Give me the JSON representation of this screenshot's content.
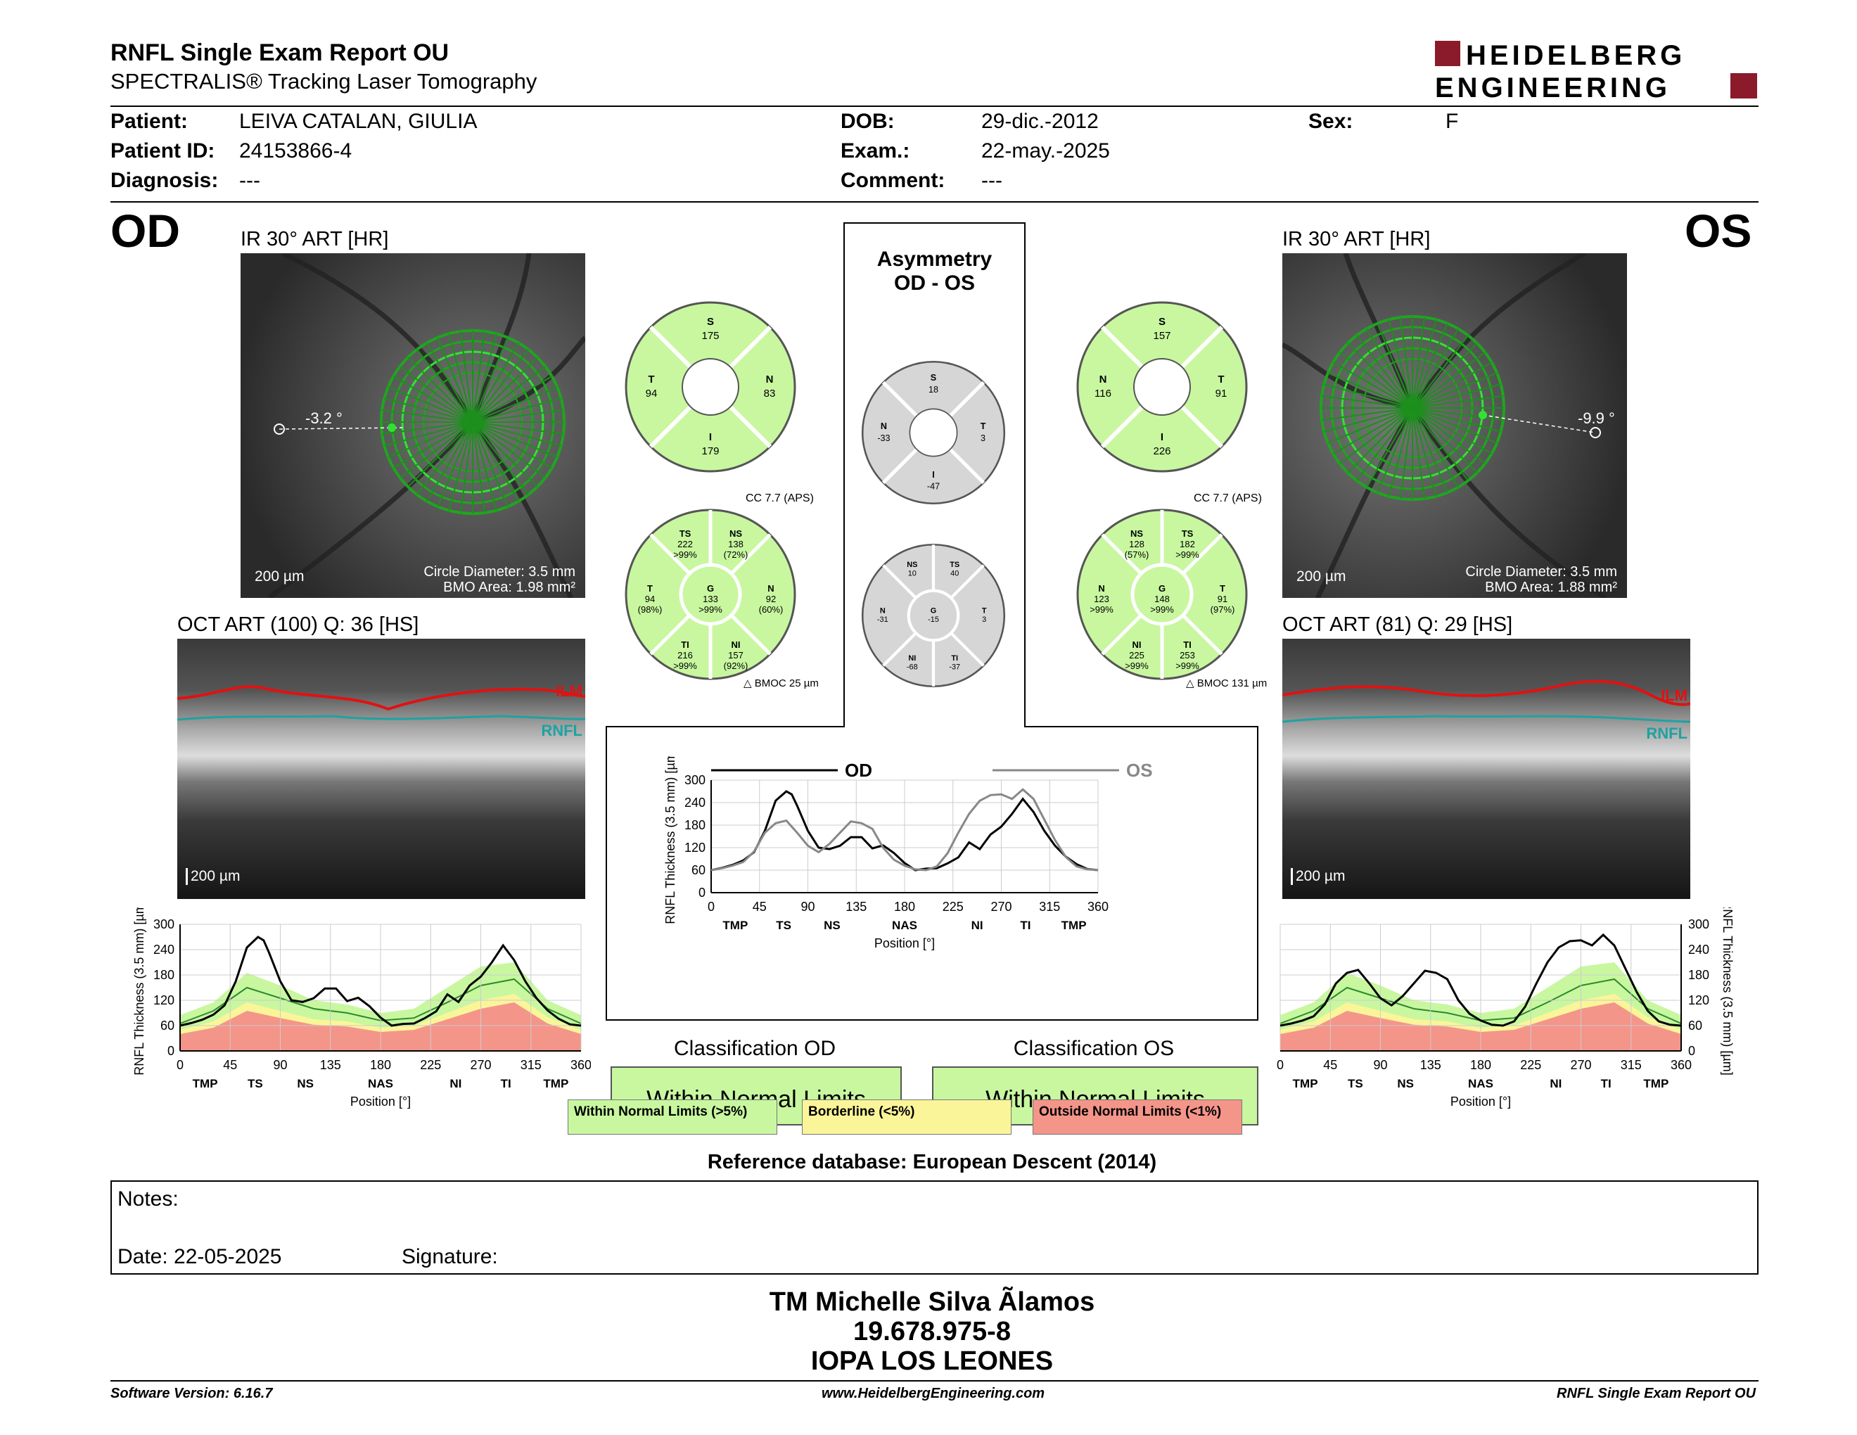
{
  "header": {
    "title": "RNFL Single Exam Report OU",
    "subtitle": "SPECTRALIS® Tracking Laser Tomography",
    "logo_line1": "HEIDELBERG",
    "logo_line2": "ENGINEERING"
  },
  "patient": {
    "patient_label": "Patient:",
    "patient_value": "LEIVA CATALAN, GIULIA",
    "id_label": "Patient ID:",
    "id_value": "24153866-4",
    "diag_label": "Diagnosis:",
    "diag_value": "---",
    "dob_label": "DOB:",
    "dob_value": "29-dic.-2012",
    "exam_label": "Exam.:",
    "exam_value": "22-may.-2025",
    "comment_label": "Comment:",
    "comment_value": "---",
    "sex_label": "Sex:",
    "sex_value": "F"
  },
  "od": {
    "eye": "OD",
    "ir_title": "IR 30° ART [HR]",
    "angle": "-3.2 °",
    "scale": "200 µm",
    "circle_diameter": "Circle Diameter: 3.5 mm",
    "bmo_area": "BMO Area: 1.98 mm²",
    "oct_title": "OCT ART (100) Q: 36 [HS]",
    "oct_scale": "200 µm",
    "ilm": "ILM",
    "rnfl": "RNFL"
  },
  "os": {
    "eye": "OS",
    "ir_title": "IR 30° ART [HR]",
    "angle": "-9.9 °",
    "scale": "200 µm",
    "circle_diameter": "Circle Diameter: 3.5 mm",
    "bmo_area": "BMO Area: 1.88 mm²",
    "oct_title": "OCT ART (81) Q: 29 [HS]",
    "oct_scale": "200 µm",
    "ilm": "ILM",
    "rnfl": "RNFL"
  },
  "quadrants_od": {
    "S": "175",
    "T": "94",
    "N": "83",
    "I": "179"
  },
  "quadrants_os": {
    "S": "157",
    "N": "116",
    "T": "91",
    "I": "226"
  },
  "quadrants_asym": {
    "S": "18",
    "N": "-33",
    "T": "3",
    "I": "-47"
  },
  "sectors_od": {
    "cc": "CC 7.7 (APS)",
    "bmoc": "BMOC 25 µm",
    "TS": [
      "TS",
      "222",
      ">99%"
    ],
    "NS": [
      "NS",
      "138",
      "(72%)"
    ],
    "T": [
      "T",
      "94",
      "(98%)"
    ],
    "G": [
      "G",
      "133",
      ">99%"
    ],
    "N": [
      "N",
      "92",
      "(60%)"
    ],
    "TI": [
      "TI",
      "216",
      ">99%"
    ],
    "NI": [
      "NI",
      "157",
      "(92%)"
    ]
  },
  "sectors_os": {
    "cc": "CC 7.7 (APS)",
    "bmoc": "BMOC 131 µm",
    "NS": [
      "NS",
      "128",
      "(57%)"
    ],
    "TS": [
      "TS",
      "182",
      ">99%"
    ],
    "N": [
      "N",
      "123",
      ">99%"
    ],
    "G": [
      "G",
      "148",
      ">99%"
    ],
    "T": [
      "T",
      "91",
      "(97%)"
    ],
    "NI": [
      "NI",
      "225",
      ">99%"
    ],
    "TI": [
      "TI",
      "253",
      ">99%"
    ]
  },
  "sectors_asym": {
    "NS": [
      "NS",
      "10"
    ],
    "TS": [
      "TS",
      "40"
    ],
    "N": [
      "N",
      "-31"
    ],
    "G": [
      "G",
      "-15"
    ],
    "T": [
      "T",
      "3"
    ],
    "NI": [
      "NI",
      "-68"
    ],
    "TI": [
      "TI",
      "-37"
    ]
  },
  "asymmetry": {
    "title1": "Asymmetry",
    "title2": "OD - OS"
  },
  "chart_data": [
    {
      "type": "line",
      "title": "",
      "xlabel": "Position [°]",
      "ylabel": "RNFL Thickness (3.5 mm) [µm]",
      "x_ticks": [
        "0",
        "45",
        "90",
        "135",
        "180",
        "225",
        "270",
        "315",
        "360"
      ],
      "sector_labels": [
        "TMP",
        "TS",
        "NS",
        "NAS",
        "NI",
        "TI",
        "TMP"
      ],
      "y_ticks": [
        "300",
        "240",
        "180",
        "120",
        "60",
        "0"
      ],
      "xlim": [
        0,
        360
      ],
      "ylim": [
        0,
        300
      ],
      "series": [
        {
          "name": "OD",
          "x": [
            0,
            10,
            20,
            30,
            40,
            50,
            60,
            70,
            75,
            80,
            90,
            100,
            110,
            120,
            130,
            140,
            150,
            160,
            170,
            180,
            190,
            200,
            210,
            220,
            230,
            240,
            250,
            260,
            270,
            280,
            290,
            300,
            310,
            320,
            330,
            340,
            350,
            360
          ],
          "values": [
            60,
            66,
            74,
            86,
            108,
            165,
            245,
            270,
            262,
            232,
            165,
            120,
            116,
            125,
            148,
            148,
            118,
            126,
            106,
            79,
            60,
            64,
            65,
            78,
            94,
            134,
            116,
            155,
            176,
            210,
            250,
            215,
            165,
            125,
            96,
            76,
            63,
            60
          ]
        }
      ],
      "bands": {
        "x": [
          0,
          30,
          60,
          90,
          120,
          150,
          180,
          210,
          240,
          270,
          300,
          330,
          360
        ],
        "green_top": [
          85,
          115,
          185,
          155,
          120,
          110,
          90,
          100,
          150,
          200,
          210,
          120,
          85
        ],
        "yellow_top": [
          50,
          70,
          115,
          95,
          75,
          70,
          55,
          60,
          90,
          120,
          135,
          80,
          50
        ],
        "red_top": [
          40,
          55,
          95,
          78,
          62,
          58,
          45,
          50,
          75,
          100,
          115,
          65,
          40
        ],
        "normal_mean": [
          65,
          95,
          150,
          125,
          100,
          90,
          72,
          78,
          115,
          155,
          170,
          100,
          65
        ]
      }
    },
    {
      "type": "line",
      "title": "",
      "xlabel": "Position [°]",
      "ylabel": "RNFL Thickness (3.5 mm) [µm]",
      "x_ticks": [
        "0",
        "45",
        "90",
        "135",
        "180",
        "225",
        "270",
        "315",
        "360"
      ],
      "sector_labels": [
        "TMP",
        "TS",
        "NS",
        "NAS",
        "NI",
        "TI",
        "TMP"
      ],
      "y_ticks": [
        "300",
        "240",
        "180",
        "120",
        "60",
        "0"
      ],
      "xlim": [
        0,
        360
      ],
      "ylim": [
        0,
        300
      ],
      "legend": [
        "OD",
        "OS"
      ],
      "series": [
        {
          "name": "OD",
          "x": [
            0,
            10,
            20,
            30,
            40,
            50,
            60,
            70,
            75,
            80,
            90,
            100,
            110,
            120,
            130,
            140,
            150,
            160,
            170,
            180,
            190,
            200,
            210,
            220,
            230,
            240,
            250,
            260,
            270,
            280,
            290,
            300,
            310,
            320,
            330,
            340,
            350,
            360
          ],
          "values": [
            60,
            66,
            74,
            86,
            108,
            165,
            245,
            270,
            262,
            232,
            165,
            120,
            116,
            125,
            148,
            148,
            118,
            126,
            106,
            79,
            60,
            64,
            65,
            78,
            94,
            134,
            116,
            155,
            176,
            210,
            250,
            215,
            165,
            125,
            96,
            76,
            63,
            60
          ]
        },
        {
          "name": "OS",
          "x": [
            0,
            10,
            20,
            30,
            40,
            50,
            60,
            70,
            80,
            90,
            100,
            110,
            120,
            130,
            140,
            150,
            160,
            170,
            180,
            190,
            200,
            210,
            220,
            230,
            240,
            250,
            260,
            270,
            280,
            290,
            300,
            310,
            320,
            330,
            340,
            350,
            360
          ],
          "values": [
            60,
            65,
            72,
            82,
            110,
            160,
            185,
            192,
            160,
            125,
            108,
            130,
            160,
            190,
            185,
            170,
            120,
            88,
            72,
            62,
            60,
            70,
            105,
            160,
            210,
            245,
            260,
            262,
            250,
            275,
            250,
            195,
            140,
            95,
            70,
            62,
            60
          ]
        }
      ]
    },
    {
      "type": "line",
      "title": "",
      "xlabel": "Position [°]",
      "ylabel": "RNFL Thickness (3.5 mm) [µm]",
      "x_ticks": [
        "0",
        "45",
        "90",
        "135",
        "180",
        "225",
        "270",
        "315",
        "360"
      ],
      "sector_labels": [
        "TMP",
        "TS",
        "NS",
        "NAS",
        "NI",
        "TI",
        "TMP"
      ],
      "y_ticks": [
        "300",
        "240",
        "180",
        "120",
        "60",
        "0"
      ],
      "xlim": [
        0,
        360
      ],
      "ylim": [
        0,
        300
      ],
      "series": [
        {
          "name": "OS",
          "x": [
            0,
            10,
            20,
            30,
            40,
            50,
            60,
            70,
            80,
            90,
            100,
            110,
            120,
            130,
            140,
            150,
            160,
            170,
            180,
            190,
            200,
            210,
            220,
            230,
            240,
            250,
            260,
            270,
            280,
            290,
            300,
            310,
            320,
            330,
            340,
            350,
            360
          ],
          "values": [
            60,
            65,
            72,
            82,
            110,
            160,
            185,
            192,
            160,
            125,
            108,
            130,
            160,
            190,
            185,
            170,
            120,
            88,
            72,
            62,
            60,
            70,
            105,
            160,
            210,
            245,
            260,
            262,
            250,
            275,
            250,
            195,
            140,
            95,
            70,
            62,
            60
          ]
        }
      ],
      "bands": {
        "x": [
          0,
          30,
          60,
          90,
          120,
          150,
          180,
          210,
          240,
          270,
          300,
          330,
          360
        ],
        "green_top": [
          85,
          115,
          185,
          155,
          120,
          110,
          90,
          100,
          150,
          200,
          210,
          120,
          85
        ],
        "yellow_top": [
          50,
          70,
          115,
          95,
          75,
          70,
          55,
          60,
          90,
          120,
          135,
          80,
          50
        ],
        "red_top": [
          40,
          55,
          95,
          78,
          62,
          58,
          45,
          50,
          75,
          100,
          115,
          65,
          40
        ],
        "normal_mean": [
          65,
          95,
          150,
          125,
          100,
          90,
          72,
          78,
          115,
          155,
          170,
          100,
          65
        ]
      }
    }
  ],
  "classification": {
    "od_title": "Classification OD",
    "od_value": "Within Normal Limits",
    "os_title": "Classification OS",
    "os_value": "Within Normal Limits",
    "legend_green": "Within Normal Limits (>5%)",
    "legend_yellow": "Borderline (<5%)",
    "legend_red": "Outside Normal Limits (<1%)",
    "reference": "Reference database: European Descent (2014)"
  },
  "notes": {
    "notes_label": "Notes:",
    "date_label": "Date: 22-05-2025",
    "signature_label": "Signature:"
  },
  "signature_block": {
    "name": "TM Michelle Silva Ãlamos",
    "rut": "19.678.975-8",
    "clinic": "IOPA LOS LEONES"
  },
  "footer": {
    "version": "Software Version: 6.16.7",
    "url": "www.HeidelbergEngineering.com",
    "report": "RNFL Single Exam Report OU"
  },
  "colors": {
    "green": "#c8f7a0",
    "yellow": "#fbf59a",
    "red": "#f4958a",
    "gray": "#d6d6d6",
    "logo_red": "#8b1a2b",
    "scan_green": "#22b822"
  }
}
